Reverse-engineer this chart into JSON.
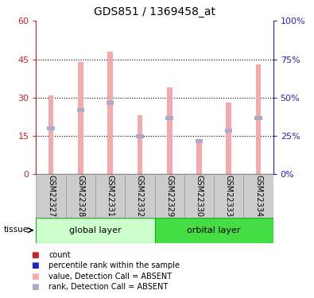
{
  "title": "GDS851 / 1369458_at",
  "samples": [
    "GSM22327",
    "GSM22328",
    "GSM22331",
    "GSM22332",
    "GSM22329",
    "GSM22330",
    "GSM22333",
    "GSM22334"
  ],
  "group_labels": [
    "global layer",
    "orbital layer"
  ],
  "group_ranges": [
    [
      0,
      3
    ],
    [
      4,
      7
    ]
  ],
  "bar_values": [
    31,
    44,
    48,
    23,
    34,
    13,
    28,
    43
  ],
  "rank_values": [
    18,
    25,
    28,
    15,
    22,
    13,
    17,
    22
  ],
  "ylim_left": [
    0,
    60
  ],
  "ylim_right": [
    0,
    100
  ],
  "yticks_left": [
    0,
    15,
    30,
    45,
    60
  ],
  "yticks_right": [
    0,
    25,
    50,
    75,
    100
  ],
  "yticklabels_left": [
    "0",
    "15",
    "30",
    "45",
    "60"
  ],
  "yticklabels_right": [
    "0%",
    "25%",
    "50%",
    "75%",
    "100%"
  ],
  "bar_color": "#F4AAAA",
  "rank_color": "#AAAACC",
  "left_axis_color": "#CC2222",
  "right_axis_color": "#2222CC",
  "group1_color": "#CCFFCC",
  "group2_color": "#44DD44",
  "group_edge_color": "#22AA22",
  "sample_cell_color": "#CCCCCC",
  "sample_cell_edge": "#999999",
  "legend_items": [
    {
      "label": "count",
      "color": "#CC2222"
    },
    {
      "label": "percentile rank within the sample",
      "color": "#2222CC"
    },
    {
      "label": "value, Detection Call = ABSENT",
      "color": "#F4AAAA"
    },
    {
      "label": "rank, Detection Call = ABSENT",
      "color": "#AAAACC"
    }
  ]
}
